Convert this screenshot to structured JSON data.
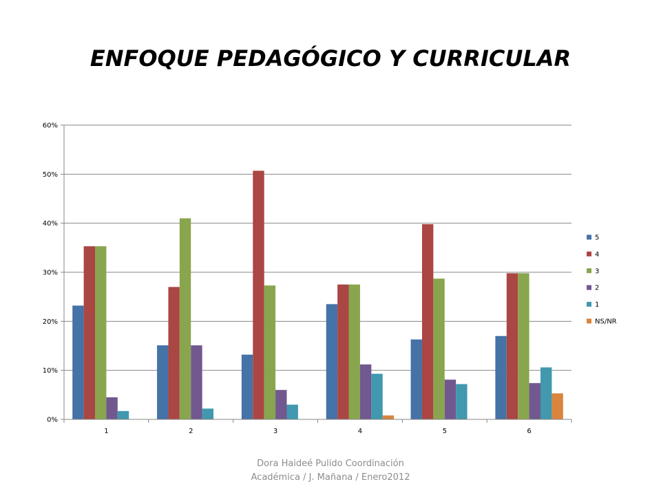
{
  "slide": {
    "title": "ENFOQUE PEDAGÓGICO Y CURRICULAR",
    "footer_line1": "Dora Haideé Pulido  Coordinación",
    "footer_line2": "Académica /  J. Mañana  / Enero2012"
  },
  "chart_data": {
    "type": "bar",
    "title": "",
    "xlabel": "",
    "ylabel": "",
    "categories": [
      "1",
      "2",
      "3",
      "4",
      "5",
      "6"
    ],
    "ylim": [
      0,
      0.6
    ],
    "yticks": [
      0,
      0.1,
      0.2,
      0.3,
      0.4,
      0.5,
      0.6
    ],
    "ytick_labels": [
      "0%",
      "10%",
      "20%",
      "30%",
      "40%",
      "50%",
      "60%"
    ],
    "grid": true,
    "legend_position": "right",
    "series": [
      {
        "name": "5",
        "color": "#4572A7",
        "values": [
          0.232,
          0.151,
          0.132,
          0.235,
          0.163,
          0.17
        ]
      },
      {
        "name": "4",
        "color": "#AA4643",
        "values": [
          0.353,
          0.27,
          0.507,
          0.275,
          0.398,
          0.298
        ]
      },
      {
        "name": "3",
        "color": "#89A54E",
        "values": [
          0.353,
          0.41,
          0.273,
          0.275,
          0.287,
          0.298
        ]
      },
      {
        "name": "2",
        "color": "#71588F",
        "values": [
          0.045,
          0.151,
          0.06,
          0.112,
          0.081,
          0.074
        ]
      },
      {
        "name": "1",
        "color": "#4198AF",
        "values": [
          0.017,
          0.022,
          0.03,
          0.093,
          0.072,
          0.106
        ]
      },
      {
        "name": "NS/NR",
        "color": "#DB843D",
        "values": [
          0,
          0,
          0,
          0.008,
          0,
          0.053
        ]
      }
    ]
  }
}
